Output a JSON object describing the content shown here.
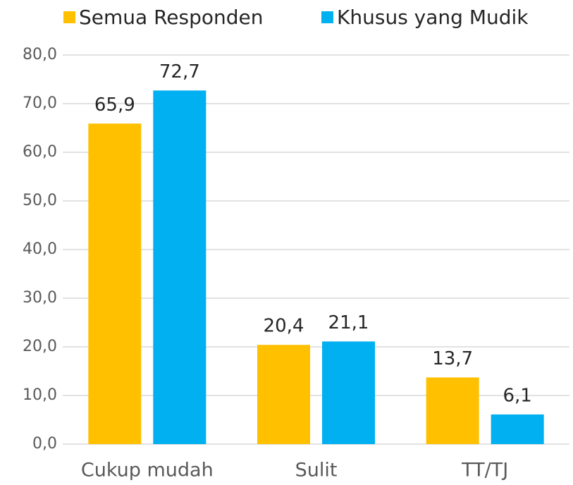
{
  "chart_data": {
    "type": "bar",
    "categories": [
      "Cukup mudah",
      "Sulit",
      "TT/TJ"
    ],
    "series": [
      {
        "name": "Semua Responden",
        "color": "#FFC000",
        "values": [
          65.9,
          20.4,
          13.7
        ],
        "value_labels": [
          "65,9",
          "20,4",
          "13,7"
        ]
      },
      {
        "name": "Khusus yang Mudik",
        "color": "#00B0F0",
        "values": [
          72.7,
          21.1,
          6.1
        ],
        "value_labels": [
          "72,7",
          "21,1",
          "6,1"
        ]
      }
    ],
    "ylim": [
      0,
      80
    ],
    "yticks": [
      {
        "value": 0,
        "label": "0,0"
      },
      {
        "value": 10,
        "label": "10,0"
      },
      {
        "value": 20,
        "label": "20,0"
      },
      {
        "value": 30,
        "label": "30,0"
      },
      {
        "value": 40,
        "label": "40,0"
      },
      {
        "value": 50,
        "label": "50,0"
      },
      {
        "value": 60,
        "label": "60,0"
      },
      {
        "value": 70,
        "label": "70,0"
      },
      {
        "value": 80,
        "label": "80,0"
      }
    ],
    "grid": true,
    "legend": "top"
  }
}
